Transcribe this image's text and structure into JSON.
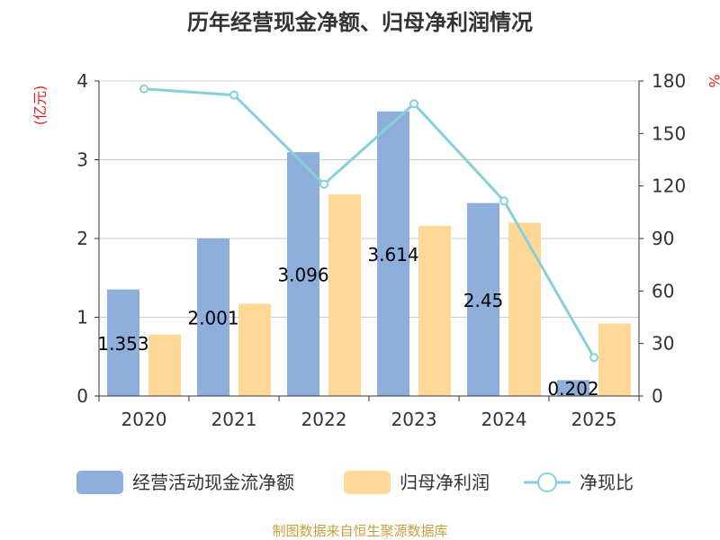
{
  "chart_data": {
    "type": "bar",
    "title": "历年经营现金净额、归母净利润情况",
    "categories": [
      "2020",
      "2021",
      "2022",
      "2023",
      "2024",
      "2025"
    ],
    "series": [
      {
        "name": "经营活动现金流净额",
        "axis": "left",
        "type": "bar",
        "color": "#8eaedb",
        "values": [
          1.353,
          2.001,
          3.096,
          3.614,
          2.45,
          0.202
        ],
        "labels": [
          "1.353",
          "2.001",
          "3.096",
          "3.614",
          "2.45",
          "0.202"
        ]
      },
      {
        "name": "归母净利润",
        "axis": "left",
        "type": "bar",
        "color": "#ffd898",
        "values": [
          0.78,
          1.17,
          2.56,
          2.16,
          2.2,
          0.92
        ]
      },
      {
        "name": "净现比",
        "axis": "right",
        "type": "line",
        "color": "#86d0d8",
        "values": [
          175.5,
          172,
          121,
          167,
          111.5,
          22
        ]
      }
    ],
    "y_left": {
      "label": "(亿元)",
      "ylim": [
        0,
        4
      ],
      "ticks": [
        "0",
        "1",
        "2",
        "3",
        "4"
      ]
    },
    "y_right": {
      "label": "%",
      "ylim": [
        0,
        180
      ],
      "ticks": [
        "0",
        "30",
        "60",
        "90",
        "120",
        "150",
        "180"
      ]
    },
    "legend_position": "bottom",
    "grid": true,
    "source": "制图数据来自恒生聚源数据库"
  }
}
